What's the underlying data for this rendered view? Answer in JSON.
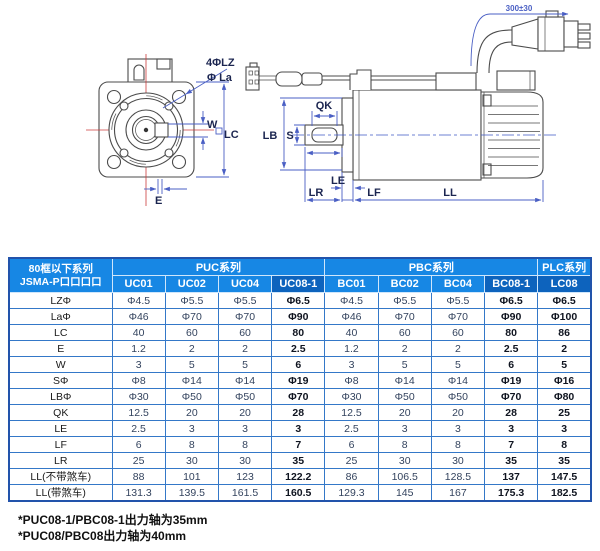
{
  "drawing": {
    "labels": {
      "lz": "4ΦLZ",
      "la": "Φ La",
      "w": "W",
      "lc": "LC",
      "e": "E",
      "qk": "QK",
      "lb": "LB",
      "s": "S",
      "le": "LE",
      "lr": "LR",
      "lf": "LF",
      "ll": "LL",
      "cable": "300±30"
    }
  },
  "table": {
    "corner": {
      "line1": "80框以下系列",
      "line2": "JSMA-P口口口口"
    },
    "groups": [
      {
        "label": "PUC系列",
        "span": 4
      },
      {
        "label": "PBC系列",
        "span": 4
      },
      {
        "label": "PLC系列",
        "span": 1
      }
    ],
    "columns": [
      {
        "label": "UC01",
        "highlight": false
      },
      {
        "label": "UC02",
        "highlight": false
      },
      {
        "label": "UC04",
        "highlight": false
      },
      {
        "label": "UC08-1",
        "highlight": true
      },
      {
        "label": "BC01",
        "highlight": false
      },
      {
        "label": "BC02",
        "highlight": false
      },
      {
        "label": "BC04",
        "highlight": false
      },
      {
        "label": "BC08-1",
        "highlight": true
      },
      {
        "label": "LC08",
        "highlight": true
      }
    ],
    "rows": [
      {
        "label": "LZΦ",
        "values": [
          "Φ4.5",
          "Φ5.5",
          "Φ5.5",
          "Φ6.5",
          "Φ4.5",
          "Φ5.5",
          "Φ5.5",
          "Φ6.5",
          "Φ6.5"
        ]
      },
      {
        "label": "LaΦ",
        "values": [
          "Φ46",
          "Φ70",
          "Φ70",
          "Φ90",
          "Φ46",
          "Φ70",
          "Φ70",
          "Φ90",
          "Φ100"
        ]
      },
      {
        "label": "LC",
        "values": [
          "40",
          "60",
          "60",
          "80",
          "40",
          "60",
          "60",
          "80",
          "86"
        ]
      },
      {
        "label": "E",
        "values": [
          "1.2",
          "2",
          "2",
          "2.5",
          "1.2",
          "2",
          "2",
          "2.5",
          "2"
        ]
      },
      {
        "label": "W",
        "values": [
          "3",
          "5",
          "5",
          "6",
          "3",
          "5",
          "5",
          "6",
          "5"
        ]
      },
      {
        "label": "SΦ",
        "values": [
          "Φ8",
          "Φ14",
          "Φ14",
          "Φ19",
          "Φ8",
          "Φ14",
          "Φ14",
          "Φ19",
          "Φ16"
        ]
      },
      {
        "label": "LBΦ",
        "values": [
          "Φ30",
          "Φ50",
          "Φ50",
          "Φ70",
          "Φ30",
          "Φ50",
          "Φ50",
          "Φ70",
          "Φ80"
        ]
      },
      {
        "label": "QK",
        "values": [
          "12.5",
          "20",
          "20",
          "28",
          "12.5",
          "20",
          "20",
          "28",
          "25"
        ]
      },
      {
        "label": "LE",
        "values": [
          "2.5",
          "3",
          "3",
          "3",
          "2.5",
          "3",
          "3",
          "3",
          "3"
        ]
      },
      {
        "label": "LF",
        "values": [
          "6",
          "8",
          "8",
          "7",
          "6",
          "8",
          "8",
          "7",
          "8"
        ]
      },
      {
        "label": "LR",
        "values": [
          "25",
          "30",
          "30",
          "35",
          "25",
          "30",
          "30",
          "35",
          "35"
        ]
      },
      {
        "label": "LL(不带煞车)",
        "values": [
          "88",
          "101",
          "123",
          "122.2",
          "86",
          "106.5",
          "128.5",
          "137",
          "147.5"
        ]
      },
      {
        "label": "LL(带煞车)",
        "values": [
          "131.3",
          "139.5",
          "161.5",
          "160.5",
          "129.3",
          "145",
          "167",
          "175.3",
          "182.5"
        ]
      }
    ]
  },
  "footnotes": {
    "line1": "*PUC08-1/PBC08-1出力轴为35mm",
    "line2": "*PUC08/PBC08出力轴为40mm"
  },
  "colors": {
    "header_blue": "#1787e4",
    "header_dark_blue": "#0d63bd",
    "grid_blue": "#3478c8",
    "outer_border_blue": "#2253ab",
    "dimension_blue": "#4a5fc4",
    "label_navy": "#1b2550",
    "centerline_red": "#cc3b3b",
    "value_text": "#33435e"
  }
}
